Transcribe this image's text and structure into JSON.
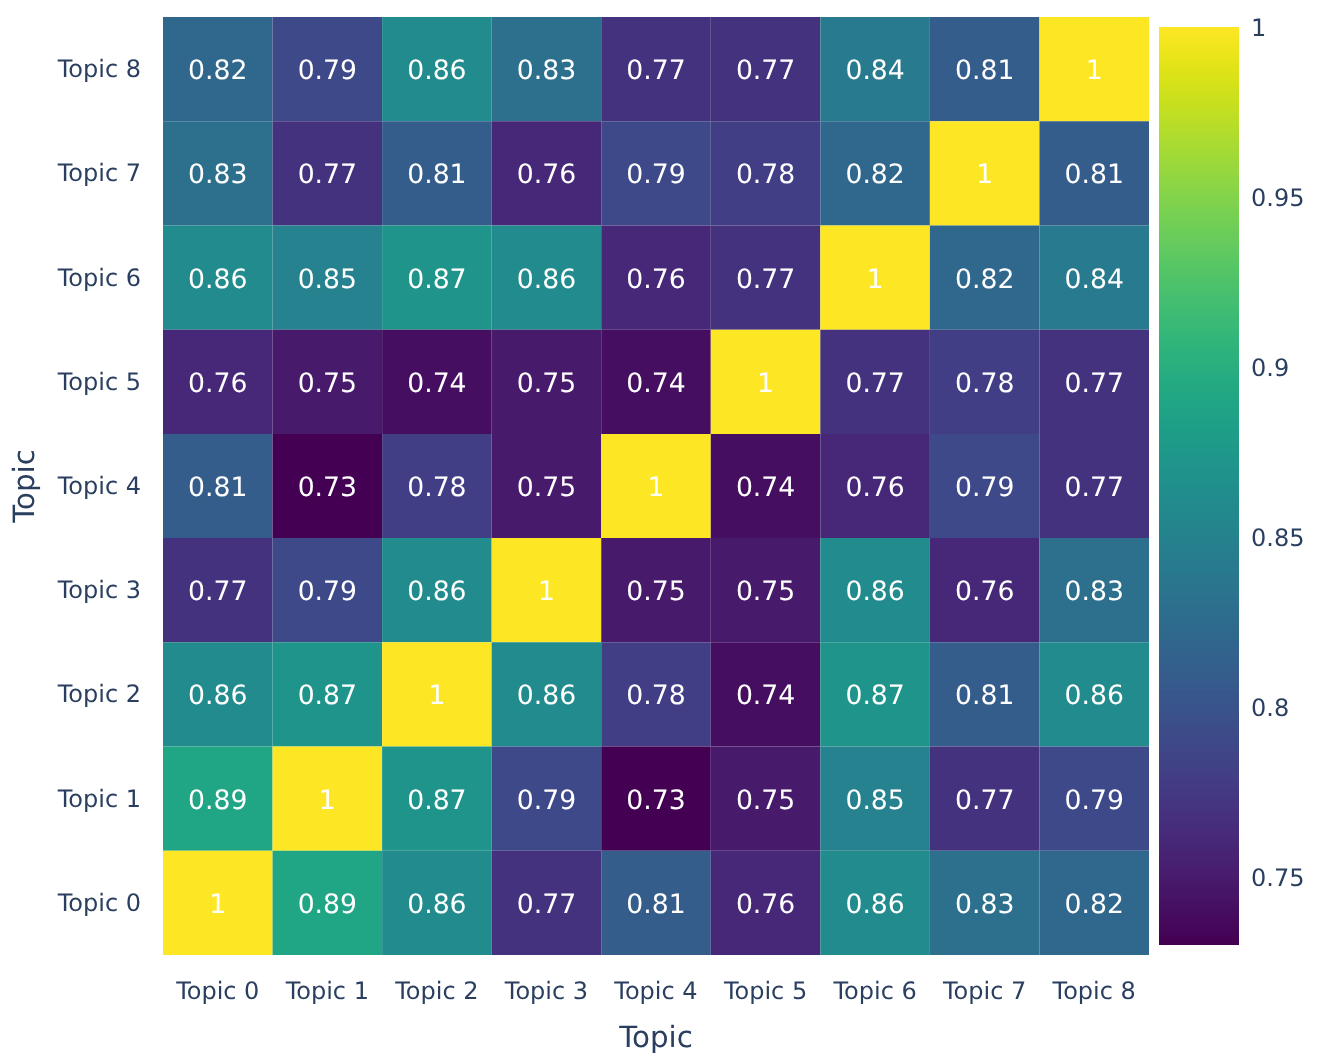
{
  "chart_data": {
    "type": "heatmap",
    "xlabel": "Topic",
    "ylabel": "Topic",
    "categories": [
      "Topic 0",
      "Topic 1",
      "Topic 2",
      "Topic 3",
      "Topic 4",
      "Topic 5",
      "Topic 6",
      "Topic 7",
      "Topic 8"
    ],
    "y_categories": [
      "Topic 8",
      "Topic 7",
      "Topic 6",
      "Topic 5",
      "Topic 4",
      "Topic 3",
      "Topic 2",
      "Topic 1",
      "Topic 0"
    ],
    "cells": [
      [
        0.82,
        0.79,
        0.86,
        0.83,
        0.77,
        0.77,
        0.84,
        0.81,
        1
      ],
      [
        0.83,
        0.77,
        0.81,
        0.76,
        0.79,
        0.78,
        0.82,
        1,
        0.81
      ],
      [
        0.86,
        0.85,
        0.87,
        0.86,
        0.76,
        0.77,
        1,
        0.82,
        0.84
      ],
      [
        0.76,
        0.75,
        0.74,
        0.75,
        0.74,
        1,
        0.77,
        0.78,
        0.77
      ],
      [
        0.81,
        0.73,
        0.78,
        0.75,
        1,
        0.74,
        0.76,
        0.79,
        0.77
      ],
      [
        0.77,
        0.79,
        0.86,
        1,
        0.75,
        0.75,
        0.86,
        0.76,
        0.83
      ],
      [
        0.86,
        0.87,
        1,
        0.86,
        0.78,
        0.74,
        0.87,
        0.81,
        0.86
      ],
      [
        0.89,
        1,
        0.87,
        0.79,
        0.73,
        0.75,
        0.85,
        0.77,
        0.79
      ],
      [
        1,
        0.89,
        0.86,
        0.77,
        0.81,
        0.76,
        0.86,
        0.83,
        0.82
      ]
    ],
    "clim": [
      0.73,
      1
    ],
    "cticks": [
      0.75,
      0.8,
      0.85,
      0.9,
      0.95,
      1
    ],
    "data_labels": true
  }
}
